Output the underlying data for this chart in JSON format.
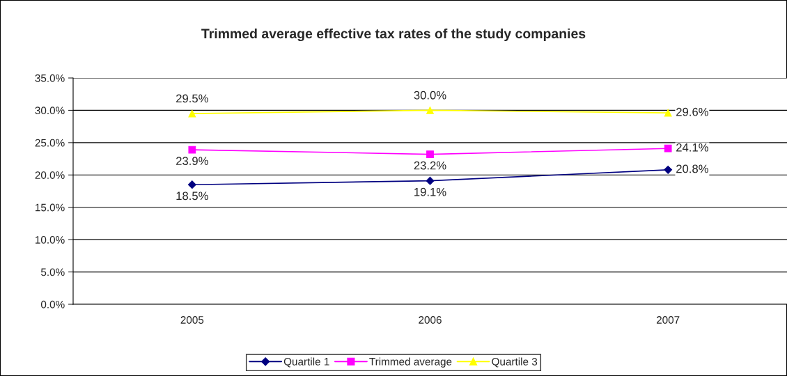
{
  "chart_data": {
    "type": "line",
    "title": "Trimmed average effective tax rates of the study companies",
    "categories": [
      "2005",
      "2006",
      "2007"
    ],
    "series": [
      {
        "name": "Quartile 1",
        "color": "#000080",
        "marker": "diamond",
        "values": [
          18.5,
          19.1,
          20.8
        ],
        "value_labels": [
          "18.5%",
          "19.1%",
          "20.8%"
        ]
      },
      {
        "name": "Trimmed average",
        "color": "#ff00ff",
        "marker": "square",
        "values": [
          23.9,
          23.2,
          24.1
        ],
        "value_labels": [
          "23.9%",
          "23.2%",
          "24.1%"
        ]
      },
      {
        "name": "Quartile 3",
        "color": "#ffff00",
        "marker": "triangle",
        "values": [
          29.5,
          30.0,
          29.6
        ],
        "value_labels": [
          "29.5%",
          "30.0%",
          "29.6%"
        ]
      }
    ],
    "ylim": [
      0,
      35
    ],
    "yticks": [
      {
        "value": 0,
        "label": "0.0%"
      },
      {
        "value": 5,
        "label": "5.0%"
      },
      {
        "value": 10,
        "label": "10.0%"
      },
      {
        "value": 15,
        "label": "15.0%"
      },
      {
        "value": 20,
        "label": "20.0%"
      },
      {
        "value": 25,
        "label": "25.0%"
      },
      {
        "value": 30,
        "label": "30.0%"
      },
      {
        "value": 35,
        "label": "35.0%"
      }
    ],
    "grid": "y",
    "legend": "bottom",
    "line_style": "solid"
  }
}
